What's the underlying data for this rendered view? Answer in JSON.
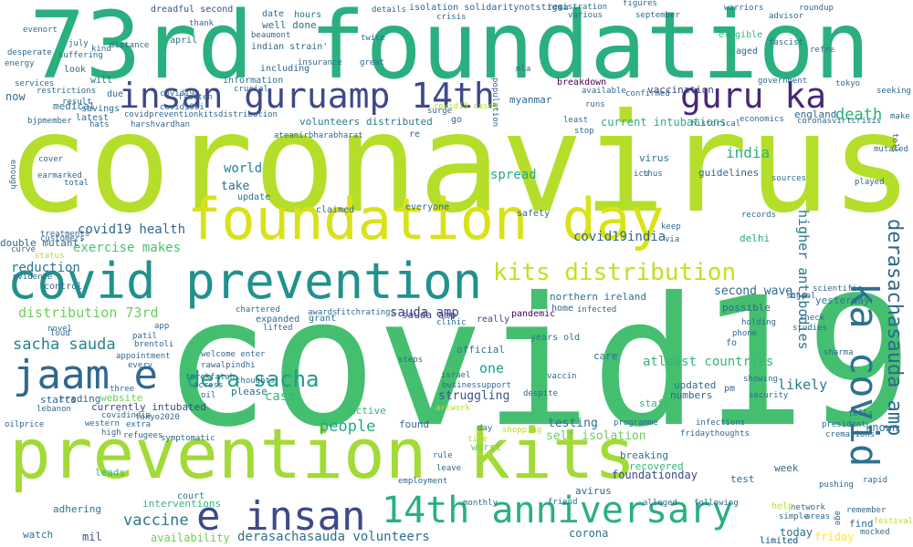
{
  "colors": {
    "lime": "#b5de2b",
    "green": "#35b779",
    "teal": "#1f9e89",
    "blue": "#31688e",
    "purple": "#443983",
    "yellow": "#d8e219"
  },
  "words": [
    {
      "text": "coronavirus",
      "color": "#b5de2b"
    },
    {
      "text": "covid19",
      "color": "#44bf70"
    },
    {
      "text": "73rd foundation",
      "color": "#2ab07f"
    },
    {
      "text": "prevention kits",
      "color": "#a2da37"
    },
    {
      "text": "foundation day",
      "color": "#d8e219"
    },
    {
      "text": "covid prevention",
      "color": "#21918c"
    },
    {
      "text": "insan guruamp 14th",
      "color": "#3e4989"
    },
    {
      "text": "guru ka",
      "color": "#482878"
    },
    {
      "text": "e insan",
      "color": "#3e4989"
    },
    {
      "text": "14th anniversary",
      "color": "#2ab07f"
    },
    {
      "text": "jaam e",
      "color": "#31688e"
    },
    {
      "text": "kits distribution",
      "color": "#c2df23"
    },
    {
      "text": "ka covid",
      "color": "#2c728e"
    },
    {
      "text": "derasachasauda amp",
      "color": "#31688e"
    },
    {
      "text": "dera sacha",
      "color": "#1f9e89"
    },
    {
      "text": "sacha sauda",
      "color": "#25838e"
    },
    {
      "text": "covid19india",
      "color": "#31688e"
    },
    {
      "text": "higher antibodies",
      "color": "#2a788e"
    },
    {
      "text": "death",
      "color": "#2ab07f"
    },
    {
      "text": "vaccine",
      "color": "#2a788e"
    },
    {
      "text": "people",
      "color": "#22a884"
    },
    {
      "text": "india",
      "color": "#2ab07f"
    },
    {
      "text": "exercise makes",
      "color": "#4ac16d"
    },
    {
      "text": "covid19 health",
      "color": "#31688e"
    },
    {
      "text": "reduction",
      "color": "#2a788e"
    },
    {
      "text": "sauda amp",
      "color": "#414487"
    },
    {
      "text": "distribution 73rd",
      "color": "#6ece58"
    },
    {
      "text": "likely",
      "color": "#2a788e"
    },
    {
      "text": "case",
      "color": "#35b779"
    },
    {
      "text": "one",
      "color": "#1f9e89"
    },
    {
      "text": "spread",
      "color": "#25ac82"
    },
    {
      "text": "world",
      "color": "#25838e"
    },
    {
      "text": "struggling",
      "color": "#3b528b"
    },
    {
      "text": "take",
      "color": "#2c728e"
    },
    {
      "text": "known",
      "color": "#2a788e"
    },
    {
      "text": "derasachasauda volunteers",
      "color": "#2c728e"
    },
    {
      "text": "foundationday",
      "color": "#3e4989"
    },
    {
      "text": "second wave",
      "color": "#31688e"
    },
    {
      "text": "current intubations",
      "color": "#2ab07f"
    },
    {
      "text": "volunteers distributed",
      "color": "#2a788e"
    },
    {
      "text": "atleast countries",
      "color": "#35b779"
    },
    {
      "text": "self isolation",
      "color": "#6ece58"
    },
    {
      "text": "testing",
      "color": "#2c728e"
    },
    {
      "text": "today",
      "color": "#2c728e"
    },
    {
      "text": "friday",
      "color": "#fde725"
    },
    {
      "text": "availability",
      "color": "#6ece58"
    },
    {
      "text": "mil",
      "color": "#3b528b"
    },
    {
      "text": "watch",
      "color": "#2c728e"
    },
    {
      "text": "leads",
      "color": "#35b779"
    },
    {
      "text": "starts",
      "color": "#31688e"
    },
    {
      "text": "trading",
      "color": "#31688e"
    },
    {
      "text": "website",
      "color": "#6ece58"
    },
    {
      "text": "currently intubated",
      "color": "#3e4989"
    },
    {
      "text": "double mutant'",
      "color": "#31688e"
    },
    {
      "text": "medical",
      "color": "#2c728e"
    },
    {
      "text": "now",
      "color": "#31688e"
    },
    {
      "text": "latest",
      "color": "#2c728e"
    },
    {
      "text": "sauda amp",
      "color": "#414487"
    },
    {
      "text": "years old",
      "color": "#2c728e"
    },
    {
      "text": "northern ireland",
      "color": "#2c728e"
    },
    {
      "text": "pandemic",
      "color": "#440154"
    },
    {
      "text": "bjp",
      "color": "#31688e"
    },
    {
      "text": "yesterday",
      "color": "#2a788e"
    },
    {
      "text": "england",
      "color": "#31688e"
    },
    {
      "text": "vaccination",
      "color": "#3e4989"
    },
    {
      "text": "breakdown",
      "color": "#440154"
    },
    {
      "text": "myanmar",
      "color": "#31688e"
    },
    {
      "text": "hours",
      "color": "#2a788e"
    },
    {
      "text": "well done",
      "color": "#2c728e"
    },
    {
      "text": "indian strain'",
      "color": "#31688e"
    },
    {
      "text": "dreadful second",
      "color": "#3b528b"
    },
    {
      "text": "isolation solidaritynotstigma",
      "color": "#31688e"
    },
    {
      "text": "guidelines",
      "color": "#31688e"
    },
    {
      "text": "delhi",
      "color": "#22a884"
    },
    {
      "text": "virus",
      "color": "#2c728e"
    },
    {
      "text": "staff",
      "color": "#35b779"
    },
    {
      "text": "found",
      "color": "#31688e"
    },
    {
      "text": "worst",
      "color": "#6ece58"
    },
    {
      "text": "official",
      "color": "#2a788e"
    },
    {
      "text": "really",
      "color": "#3e4989"
    },
    {
      "text": "active",
      "color": "#35b779"
    },
    {
      "text": "please",
      "color": "#2c728e"
    },
    {
      "text": "numbers",
      "color": "#31688e"
    },
    {
      "text": "updated",
      "color": "#2c728e"
    },
    {
      "text": "breaking",
      "color": "#2c728e"
    },
    {
      "text": "recovered",
      "color": "#35b779"
    },
    {
      "text": "test",
      "color": "#31688e"
    },
    {
      "text": "week",
      "color": "#31688e"
    },
    {
      "text": "court",
      "color": "#2a788e"
    },
    {
      "text": "interventions",
      "color": "#35b779"
    },
    {
      "text": "adhering",
      "color": "#2c728e"
    },
    {
      "text": "find",
      "color": "#31688e"
    },
    {
      "text": "limited",
      "color": "#31688e"
    },
    {
      "text": "corona",
      "color": "#2c728e"
    },
    {
      "text": "avirus",
      "color": "#31688e"
    },
    {
      "text": "possible",
      "color": "#31688e"
    },
    {
      "text": "care",
      "color": "#2c728e"
    },
    {
      "text": "aged",
      "color": "#31688e"
    },
    {
      "text": "eligible",
      "color": "#35b779"
    },
    {
      "text": "information",
      "color": "#2c728e"
    },
    {
      "text": "including",
      "color": "#31688e"
    },
    {
      "text": "will",
      "color": "#31688e"
    },
    {
      "text": "re",
      "color": "#31688e"
    },
    {
      "text": "control",
      "color": "#31688e"
    },
    {
      "text": "grant",
      "color": "#2c728e"
    },
    {
      "text": "expanded",
      "color": "#31688e"
    },
    {
      "text": "safety",
      "color": "#31688e"
    },
    {
      "text": "claimed",
      "color": "#31688e"
    },
    {
      "text": "everyone",
      "color": "#31688e"
    },
    {
      "text": "update",
      "color": "#2c728e"
    },
    {
      "text": "fo",
      "color": "#31688e"
    },
    {
      "text": "pm",
      "color": "#31688e"
    },
    {
      "text": "home",
      "color": "#31688e"
    },
    {
      "text": "go",
      "color": "#31688e"
    },
    {
      "text": "date",
      "color": "#31688e"
    },
    {
      "text": "april",
      "color": "#2c728e"
    },
    {
      "text": "look",
      "color": "#31688e"
    },
    {
      "text": "due",
      "color": "#31688e"
    },
    {
      "text": "savings",
      "color": "#31688e"
    },
    {
      "text": "covid19",
      "color": "#31688e"
    },
    {
      "text": "covid19 cases",
      "color": "#b5de2b"
    },
    {
      "text": "fridaythoughts",
      "color": "#31688e"
    },
    {
      "text": "infections",
      "color": "#31688e"
    },
    {
      "text": "programme",
      "color": "#31688e"
    },
    {
      "text": "cremations",
      "color": "#31688e"
    },
    {
      "text": "president",
      "color": "#31688e"
    },
    {
      "text": "surge",
      "color": "#31688e"
    },
    {
      "text": "details",
      "color": "#31688e"
    },
    {
      "text": "figures",
      "color": "#31688e"
    },
    {
      "text": "september",
      "color": "#31688e"
    },
    {
      "text": "warriors",
      "color": "#31688e"
    },
    {
      "text": "government",
      "color": "#31688e"
    },
    {
      "text": "economics",
      "color": "#31688e"
    },
    {
      "text": "historical",
      "color": "#31688e"
    },
    {
      "text": "make",
      "color": "#31688e"
    },
    {
      "text": "seeking",
      "color": "#31688e"
    },
    {
      "text": "school",
      "color": "#31688e"
    },
    {
      "text": "scientific",
      "color": "#31688e"
    },
    {
      "text": "check",
      "color": "#31688e"
    },
    {
      "text": "studies",
      "color": "#31688e"
    },
    {
      "text": "sharma",
      "color": "#31688e"
    },
    {
      "text": "tells",
      "color": "#31688e"
    },
    {
      "text": "remember",
      "color": "#31688e"
    },
    {
      "text": "festival",
      "color": "#b5de2b"
    },
    {
      "text": "mocked",
      "color": "#31688e"
    },
    {
      "text": "rapid",
      "color": "#31688e"
    },
    {
      "text": "pushing",
      "color": "#31688e"
    },
    {
      "text": "toll",
      "color": "#31688e"
    },
    {
      "text": "played",
      "color": "#31688e"
    },
    {
      "text": "mutated",
      "color": "#31688e"
    },
    {
      "text": "icu",
      "color": "#31688e"
    },
    {
      "text": "thus",
      "color": "#31688e"
    },
    {
      "text": "keep",
      "color": "#31688e"
    },
    {
      "text": "via",
      "color": "#31688e"
    },
    {
      "text": "records",
      "color": "#31688e"
    },
    {
      "text": "holding",
      "color": "#31688e"
    },
    {
      "text": "phone",
      "color": "#31688e"
    },
    {
      "text": "showing",
      "color": "#31688e"
    },
    {
      "text": "security",
      "color": "#31688e"
    },
    {
      "text": "network",
      "color": "#31688e"
    },
    {
      "text": "simple",
      "color": "#31688e"
    },
    {
      "text": "areas",
      "color": "#31688e"
    },
    {
      "text": "help",
      "color": "#b5de2b"
    },
    {
      "text": "age",
      "color": "#31688e"
    },
    {
      "text": "following",
      "color": "#31688e"
    },
    {
      "text": "alleged",
      "color": "#31688e"
    },
    {
      "text": "friend",
      "color": "#31688e"
    },
    {
      "text": "monthly",
      "color": "#31688e"
    },
    {
      "text": "employment",
      "color": "#31688e"
    },
    {
      "text": "leave",
      "color": "#31688e"
    },
    {
      "text": "rule",
      "color": "#31688e"
    },
    {
      "text": "day",
      "color": "#31688e"
    },
    {
      "text": "time",
      "color": "#b5de2b"
    },
    {
      "text": "shopping",
      "color": "#b5de2b"
    },
    {
      "text": "despite",
      "color": "#31688e"
    },
    {
      "text": "vaccin",
      "color": "#31688e"
    },
    {
      "text": "israel",
      "color": "#31688e"
    },
    {
      "text": "businessupport",
      "color": "#31688e"
    },
    {
      "text": "artwork",
      "color": "#b5de2b"
    },
    {
      "text": "steps",
      "color": "#31688e"
    },
    {
      "text": "infected",
      "color": "#31688e"
    },
    {
      "text": "clinic",
      "color": "#31688e"
    },
    {
      "text": "chartered",
      "color": "#31688e"
    },
    {
      "text": "awards",
      "color": "#31688e"
    },
    {
      "text": "fitchratings",
      "color": "#31688e"
    },
    {
      "text": "lifted",
      "color": "#31688e"
    },
    {
      "text": "welcome enter",
      "color": "#31688e"
    },
    {
      "text": "rawalpindhi",
      "color": "#31688e"
    },
    {
      "text": "tarekfatah",
      "color": "#31688e"
    },
    {
      "text": "thoughts",
      "color": "#31688e"
    },
    {
      "text": "across",
      "color": "#31688e"
    },
    {
      "text": "oil",
      "color": "#31688e"
    },
    {
      "text": "appointment",
      "color": "#31688e"
    },
    {
      "text": "three",
      "color": "#31688e"
    },
    {
      "text": "every",
      "color": "#31688e"
    },
    {
      "text": "patil",
      "color": "#31688e"
    },
    {
      "text": "brentoli",
      "color": "#31688e"
    },
    {
      "text": "loud",
      "color": "#31688e"
    },
    {
      "text": "novel",
      "color": "#31688e"
    },
    {
      "text": "app",
      "color": "#31688e"
    },
    {
      "text": "western",
      "color": "#31688e"
    },
    {
      "text": "extra",
      "color": "#31688e"
    },
    {
      "text": "high",
      "color": "#31688e"
    },
    {
      "text": "refugees",
      "color": "#31688e"
    },
    {
      "text": "symptomatic",
      "color": "#31688e"
    },
    {
      "text": "covidindia",
      "color": "#31688e"
    },
    {
      "text": "tokyo2020",
      "color": "#31688e"
    },
    {
      "text": "lebanon",
      "color": "#31688e"
    },
    {
      "text": "oilprice",
      "color": "#31688e"
    },
    {
      "text": "evidence",
      "color": "#31688e"
    },
    {
      "text": "curve",
      "color": "#31688e"
    },
    {
      "text": "status",
      "color": "#b5de2b"
    },
    {
      "text": "customers",
      "color": "#31688e"
    },
    {
      "text": "treatments",
      "color": "#31688e"
    },
    {
      "text": "total",
      "color": "#31688e"
    },
    {
      "text": "earmarked",
      "color": "#31688e"
    },
    {
      "text": "cover",
      "color": "#31688e"
    },
    {
      "text": "enough",
      "color": "#31688e"
    },
    {
      "text": "bjpmember",
      "color": "#31688e"
    },
    {
      "text": "services",
      "color": "#31688e"
    },
    {
      "text": "restrictions",
      "color": "#31688e"
    },
    {
      "text": "result",
      "color": "#31688e"
    },
    {
      "text": "hats",
      "color": "#31688e"
    },
    {
      "text": "desperate",
      "color": "#31688e"
    },
    {
      "text": "suffering",
      "color": "#31688e"
    },
    {
      "text": "energy",
      "color": "#31688e"
    },
    {
      "text": "july",
      "color": "#31688e"
    },
    {
      "text": "kind",
      "color": "#31688e"
    },
    {
      "text": "distance",
      "color": "#31688e"
    },
    {
      "text": "evenort",
      "color": "#31688e"
    },
    {
      "text": "thank",
      "color": "#31688e"
    },
    {
      "text": "beaumont",
      "color": "#31688e"
    },
    {
      "text": "crucial",
      "color": "#31688e"
    },
    {
      "text": "flatten",
      "color": "#31688e"
    },
    {
      "text": "covid19ui",
      "color": "#31688e"
    },
    {
      "text": "covidpreventionkitsdistribution",
      "color": "#31688e"
    },
    {
      "text": "harshvardhan",
      "color": "#31688e"
    },
    {
      "text": "ateanirbharabharat",
      "color": "#31688e"
    },
    {
      "text": "insurance",
      "color": "#31688e"
    },
    {
      "text": "twice",
      "color": "#31688e"
    },
    {
      "text": "great",
      "color": "#31688e"
    },
    {
      "text": "crisis",
      "color": "#31688e"
    },
    {
      "text": "population",
      "color": "#31688e"
    },
    {
      "text": "mla",
      "color": "#31688e"
    },
    {
      "text": "least",
      "color": "#31688e"
    },
    {
      "text": "stop",
      "color": "#31688e"
    },
    {
      "text": "various",
      "color": "#31688e"
    },
    {
      "text": "registration",
      "color": "#31688e"
    },
    {
      "text": "available",
      "color": "#31688e"
    },
    {
      "text": "confirmed",
      "color": "#31688e"
    },
    {
      "text": "runs",
      "color": "#31688e"
    },
    {
      "text": "advisor",
      "color": "#31688e"
    },
    {
      "text": "fascist",
      "color": "#31688e"
    },
    {
      "text": "tokyo",
      "color": "#31688e"
    },
    {
      "text": "roundup",
      "color": "#31688e"
    },
    {
      "text": "refre",
      "color": "#31688e"
    },
    {
      "text": "coronasvirtcrisis",
      "color": "#31688e"
    },
    {
      "text": "sources",
      "color": "#31688e"
    },
    {
      "text": "limited",
      "color": "#31688e"
    }
  ]
}
